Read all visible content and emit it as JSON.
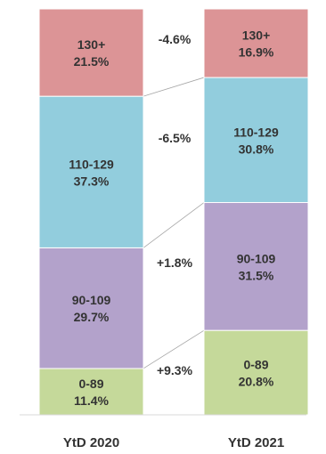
{
  "chart_data": {
    "type": "bar",
    "stacked": true,
    "normalized_to_percent": true,
    "categories": [
      "YtD 2020",
      "YtD 2021"
    ],
    "series": [
      {
        "name": "0-89",
        "values": [
          11.4,
          20.8
        ],
        "color": "#c5d99a"
      },
      {
        "name": "90-109",
        "values": [
          29.7,
          31.5
        ],
        "color": "#b3a2cb"
      },
      {
        "name": "110-129",
        "values": [
          37.3,
          30.8
        ],
        "color": "#92cddd"
      },
      {
        "name": "130+",
        "values": [
          21.5,
          16.9
        ],
        "color": "#dc9496"
      }
    ],
    "changes": [
      "+9.3%",
      "+1.8%",
      "-6.5%",
      "-4.6%"
    ],
    "ylim": [
      0,
      100
    ],
    "grid": false,
    "legend": "none",
    "title": "",
    "xlabel": "",
    "ylabel": ""
  }
}
